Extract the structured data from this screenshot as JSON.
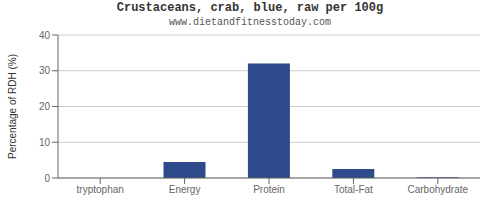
{
  "chart_data": {
    "type": "bar",
    "title": "Crustaceans, crab, blue, raw per 100g",
    "subtitle": "www.dietandfitnesstoday.com",
    "categories": [
      "tryptophan",
      "Energy",
      "Protein",
      "Total-Fat",
      "Carbohydrate"
    ],
    "values": [
      0,
      4.5,
      32,
      2.5,
      0.2
    ],
    "color": "#2d4a8a",
    "ylabel": "Percentage of RDH (%)",
    "ylim": [
      0,
      40
    ],
    "yticks": [
      0,
      10,
      20,
      30,
      40
    ],
    "grid": true
  }
}
